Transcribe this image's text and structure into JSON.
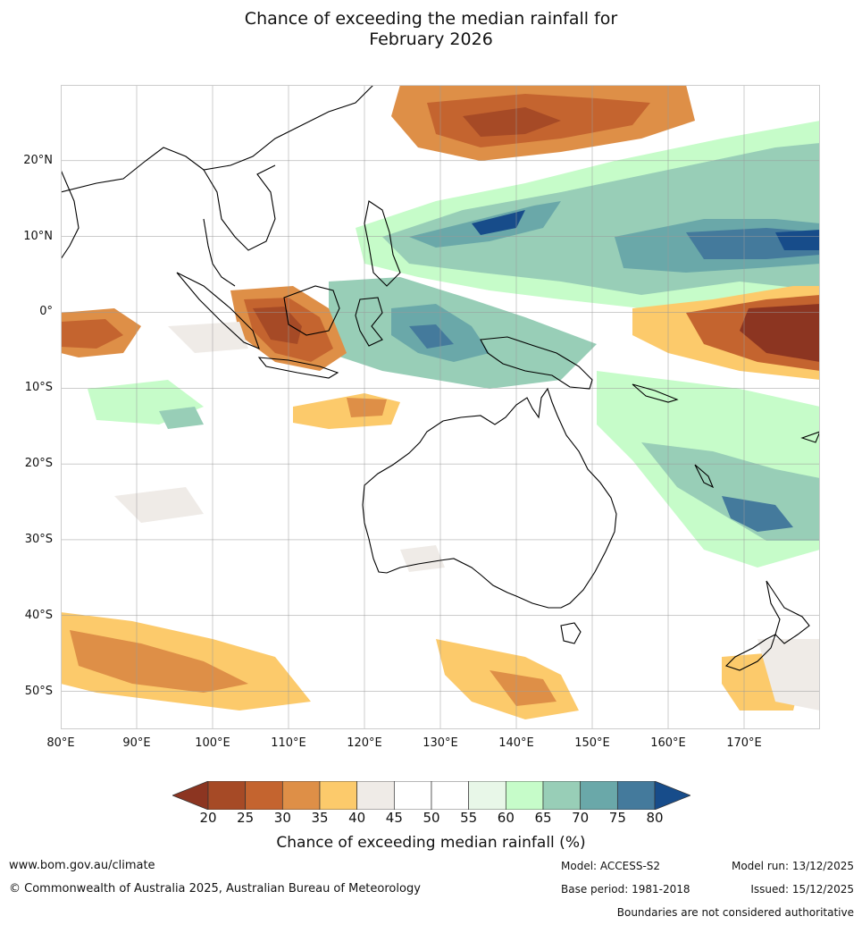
{
  "title_line1": "Chance of exceeding the median rainfall for",
  "title_line2": "February 2026",
  "lat_ticks": [
    {
      "label": "20°N",
      "lat": 20
    },
    {
      "label": "10°N",
      "lat": 10
    },
    {
      "label": "0°",
      "lat": 0
    },
    {
      "label": "10°S",
      "lat": -10
    },
    {
      "label": "20°S",
      "lat": -20
    },
    {
      "label": "30°S",
      "lat": -30
    },
    {
      "label": "40°S",
      "lat": -40
    },
    {
      "label": "50°S",
      "lat": -50
    }
  ],
  "lon_ticks": [
    {
      "label": "80°E",
      "lon": 80
    },
    {
      "label": "90°E",
      "lon": 90
    },
    {
      "label": "100°E",
      "lon": 100
    },
    {
      "label": "110°E",
      "lon": 110
    },
    {
      "label": "120°E",
      "lon": 120
    },
    {
      "label": "130°E",
      "lon": 130
    },
    {
      "label": "140°E",
      "lon": 140
    },
    {
      "label": "150°E",
      "lon": 150
    },
    {
      "label": "160°E",
      "lon": 160
    },
    {
      "label": "170°E",
      "lon": 170
    }
  ],
  "map_extent": {
    "lon_min": 80,
    "lon_max": 180,
    "lat_min": -55,
    "lat_max": 30
  },
  "colorbar": {
    "ticks": [
      "20",
      "25",
      "30",
      "35",
      "40",
      "45",
      "50",
      "55",
      "60",
      "65",
      "70",
      "75",
      "80"
    ],
    "colors": [
      "#a64a26",
      "#c4642f",
      "#de8f47",
      "#fcca6b",
      "#efebe7",
      "#ffffff",
      "#ffffff",
      "#e8f7e8",
      "#c6fcc9",
      "#98ceb7",
      "#6aa8a9",
      "#447a9c"
    ],
    "under_color": "#8c3521",
    "over_color": "#174c8a",
    "label": "Chance of exceeding median rainfall (%)"
  },
  "footer": {
    "website": "www.bom.gov.au/climate",
    "copyright": "© Commonwealth of Australia 2025, Australian Bureau of Meteorology",
    "model": "Model: ACCESS-S2",
    "base_period": "Base period: 1981-2018",
    "model_run": "Model run: 13/12/2025",
    "issued": "Issued: 15/12/2025",
    "disclaimer": "Boundaries are not considered authoritative"
  }
}
